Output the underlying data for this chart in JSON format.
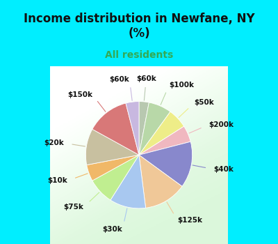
{
  "title": "Income distribution in Newfane, NY\n(%)",
  "subtitle": "All residents",
  "title_color": "#111111",
  "subtitle_color": "#33aa55",
  "bg_cyan": "#00EEFF",
  "slices": [
    {
      "label": "$60k",
      "value": 3,
      "color": "#b8c8b0"
    },
    {
      "label": "$100k",
      "value": 7,
      "color": "#b8d8a8"
    },
    {
      "label": "$50k",
      "value": 6,
      "color": "#eeed88"
    },
    {
      "label": "$200k",
      "value": 5,
      "color": "#f0b8c0"
    },
    {
      "label": "$40k",
      "value": 14,
      "color": "#8888cc"
    },
    {
      "label": "$125k",
      "value": 13,
      "color": "#f0c898"
    },
    {
      "label": "$30k",
      "value": 11,
      "color": "#a8c8f0"
    },
    {
      "label": "$75k",
      "value": 8,
      "color": "#c0ee90"
    },
    {
      "label": "$10k",
      "value": 5,
      "color": "#f0b868"
    },
    {
      "label": "$20k",
      "value": 11,
      "color": "#c8c0a0"
    },
    {
      "label": "$150k",
      "value": 13,
      "color": "#d87878"
    },
    {
      "label": "$60k_b",
      "value": 4,
      "color": "#c8b8e0"
    }
  ],
  "title_fontsize": 12,
  "subtitle_fontsize": 10,
  "label_fontsize": 7.5
}
